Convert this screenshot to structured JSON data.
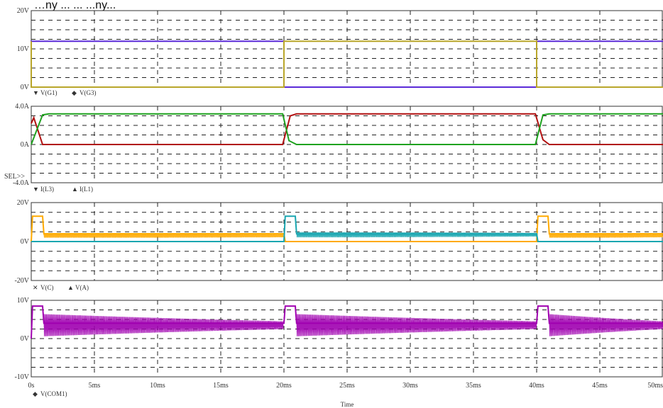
{
  "caption": "…ny ... ... ...ny...",
  "chart_data": [
    {
      "type": "line",
      "title": "",
      "ylim": [
        0,
        20
      ],
      "yticks": [
        "20V",
        "10V",
        "0V"
      ],
      "legend": [
        "V(G1)",
        "V(G3)"
      ],
      "series": [
        {
          "name": "V(G1)",
          "color": "#5b2bd8",
          "marker": "▼",
          "x": [
            0,
            0,
            20,
            20,
            40,
            40,
            50
          ],
          "y": [
            0,
            12,
            12,
            0,
            0,
            12,
            12
          ]
        },
        {
          "name": "V(G3)",
          "color": "#b9a62a",
          "marker": "◆",
          "x": [
            0,
            0,
            20,
            20,
            40,
            40,
            50
          ],
          "y": [
            12,
            0,
            0,
            12,
            12,
            0,
            0
          ]
        }
      ]
    },
    {
      "type": "line",
      "title": "",
      "ylim": [
        -4,
        4
      ],
      "yticks": [
        "4.0A",
        "0A",
        "-4.0A"
      ],
      "sel_label": "SEL>>",
      "legend": [
        "I(L3)",
        "I(L1)"
      ],
      "series": [
        {
          "name": "I(L3)",
          "color": "#b01010",
          "marker": "▼",
          "x": [
            0,
            0.2,
            0.9,
            19.9,
            20.5,
            21.0,
            39.9,
            40.5,
            41.0,
            50
          ],
          "y": [
            2.2,
            2.8,
            0,
            0,
            3.0,
            3.2,
            3.2,
            0.5,
            0,
            0
          ]
        },
        {
          "name": "I(L1)",
          "color": "#1fa21f",
          "marker": "▲",
          "x": [
            0,
            0.9,
            1.4,
            19.9,
            20.4,
            21.0,
            39.9,
            40.5,
            41.0,
            50
          ],
          "y": [
            0,
            3.1,
            3.2,
            3.2,
            0.4,
            0,
            0,
            3.1,
            3.2,
            3.2
          ]
        }
      ]
    },
    {
      "type": "line",
      "title": "",
      "ylim": [
        -20,
        20
      ],
      "yticks": [
        "20V",
        "0V",
        "-20V"
      ],
      "legend": [
        "V(C)",
        "V(A)"
      ],
      "series": [
        {
          "name": "V(C)",
          "color": "#ffaa00",
          "marker": "✕",
          "osc": [
            [
              1.0,
              20.0,
              1.4,
              8.0,
              3.0
            ],
            [
              41.0,
              50.0,
              1.4,
              8.0,
              3.0
            ]
          ],
          "x": [
            0,
            0.1,
            0.9,
            1.0,
            20.0,
            20.1,
            40.0,
            40.1,
            40.9,
            41.0,
            50
          ],
          "y": [
            0,
            13,
            13,
            4.0,
            4.0,
            0,
            0,
            13,
            13,
            4.0,
            4.0
          ]
        },
        {
          "name": "V(A)",
          "color": "#1aa6b0",
          "marker": "▲",
          "osc": [
            [
              21.0,
              40.0,
              2.0,
              9.0,
              3.5
            ]
          ],
          "x": [
            0,
            20.0,
            20.1,
            20.9,
            21.0,
            40.0,
            40.1,
            50
          ],
          "y": [
            0,
            0,
            13,
            13,
            4.0,
            4.0,
            0,
            0
          ]
        }
      ]
    },
    {
      "type": "line",
      "title": "",
      "ylim": [
        -10,
        10
      ],
      "yticks": [
        "10V",
        "0V",
        "-10V"
      ],
      "xticks": [
        "0s",
        "5ms",
        "10ms",
        "15ms",
        "20ms",
        "25ms",
        "30ms",
        "35ms",
        "40ms",
        "45ms",
        "50ms"
      ],
      "xlabel": "Time",
      "legend": [
        "V(COM1)"
      ],
      "series": [
        {
          "name": "V(COM1)",
          "color": "#a000b0",
          "marker": "◆",
          "osc": [
            [
              1.0,
              20.0,
              5.0,
              10.0,
              3.5
            ],
            [
              21.0,
              40.0,
              5.0,
              10.0,
              3.5
            ],
            [
              41.0,
              50.0,
              5.0,
              10.0,
              3.5
            ]
          ],
          "x": [
            0,
            0.1,
            0.9,
            1.0,
            20.0,
            20.1,
            20.9,
            21.0,
            40.0,
            40.1,
            40.9,
            41.0,
            50
          ],
          "y": [
            0,
            8.5,
            8.5,
            4.0,
            4.0,
            8.5,
            8.5,
            4.0,
            4.0,
            8.5,
            8.5,
            4.0,
            4.0
          ]
        }
      ]
    }
  ]
}
